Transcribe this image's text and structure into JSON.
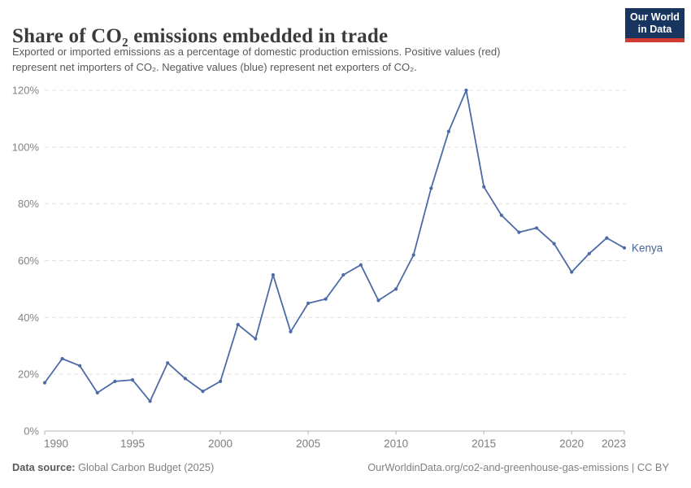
{
  "header": {
    "title": "Share of CO₂ emissions embedded in trade",
    "subtitle_line1": "Exported or imported emissions as a percentage of domestic production emissions. Positive values (red)",
    "subtitle_line2": "represent net importers of CO₂. Negative values (blue) represent net exporters of CO₂.",
    "logo": {
      "line1": "Our World",
      "line2": "in Data",
      "bg_color": "#18355f",
      "bar_color": "#d23b31"
    }
  },
  "chart_data": {
    "type": "line",
    "title": "Share of CO₂ emissions embedded in trade",
    "x": [
      1990,
      1991,
      1992,
      1993,
      1994,
      1995,
      1996,
      1997,
      1998,
      1999,
      2000,
      2001,
      2002,
      2003,
      2004,
      2005,
      2006,
      2007,
      2008,
      2009,
      2010,
      2011,
      2012,
      2013,
      2014,
      2015,
      2016,
      2017,
      2018,
      2019,
      2020,
      2021,
      2022,
      2023
    ],
    "series": [
      {
        "name": "Kenya",
        "color": "#4c6ba6",
        "values": [
          17,
          25.5,
          23,
          13.5,
          17.5,
          18,
          10.5,
          24,
          18.5,
          14,
          17.5,
          37.5,
          32.5,
          55,
          35,
          45,
          46.5,
          55,
          58.5,
          46,
          50,
          62,
          85.5,
          105.5,
          120,
          86,
          76,
          70,
          71.5,
          66,
          56,
          62.5,
          68,
          64.5
        ]
      }
    ],
    "xlabel": "",
    "ylabel": "",
    "xlim": [
      1990,
      2023
    ],
    "ylim": [
      0,
      120
    ],
    "x_ticks": [
      1990,
      1995,
      2000,
      2005,
      2010,
      2015,
      2020,
      2023
    ],
    "y_ticks": [
      0,
      20,
      40,
      60,
      80,
      100,
      120
    ],
    "y_tick_suffix": "%",
    "grid": "horizontal-dashed",
    "legend_position": "end-of-line",
    "end_label": "Kenya"
  },
  "footer": {
    "source_label": "Data source:",
    "source_value": "Global Carbon Budget (2025)",
    "right_text": "OurWorldinData.org/co2-and-greenhouse-gas-emissions | CC BY"
  }
}
